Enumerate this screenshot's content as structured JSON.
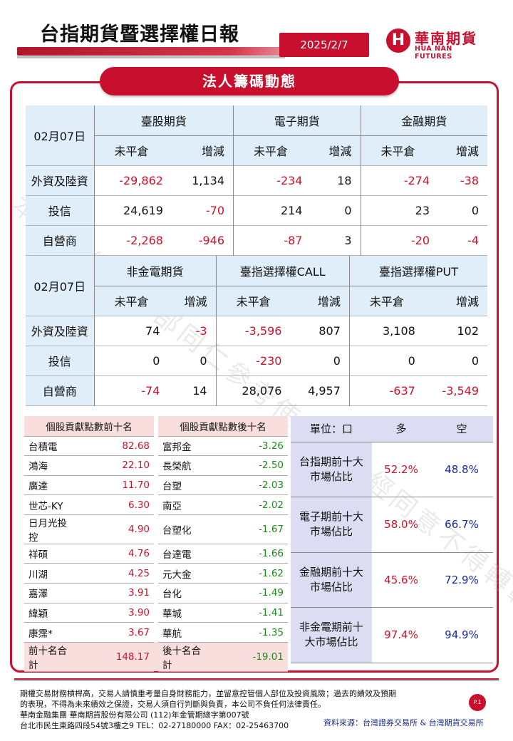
{
  "header": {
    "title": "台指期貨暨選擇權日報",
    "date": "2025/2/7",
    "brand_cn": "華南期貨",
    "brand_en": "HUA NAN FUTURES"
  },
  "section_title": "法人籌碼動態",
  "inst_table_1": {
    "date": "02月07日",
    "groups": [
      "臺股期貨",
      "電子期貨",
      "金融期貨"
    ],
    "sub_oi": "未平倉",
    "sub_chg": "增減",
    "rows": [
      {
        "label": "外資及陸資",
        "v": [
          "-29,862",
          "1,134",
          "-234",
          "18",
          "-274",
          "-38"
        ]
      },
      {
        "label": "投信",
        "v": [
          "24,619",
          "-70",
          "214",
          "0",
          "23",
          "0"
        ]
      },
      {
        "label": "自營商",
        "v": [
          "-2,268",
          "-946",
          "-87",
          "3",
          "-20",
          "-4"
        ]
      }
    ]
  },
  "inst_table_2": {
    "date": "02月07日",
    "groups": [
      "非金電期貨",
      "臺指選擇權CALL",
      "臺指選擇權PUT"
    ],
    "sub_oi": "未平倉",
    "sub_chg": "增減",
    "rows": [
      {
        "label": "外資及陸資",
        "v": [
          "74",
          "-3",
          "-3,596",
          "807",
          "3,108",
          "102"
        ]
      },
      {
        "label": "投信",
        "v": [
          "0",
          "0",
          "-230",
          "0",
          "0",
          "0"
        ]
      },
      {
        "label": "自營商",
        "v": [
          "-74",
          "14",
          "28,076",
          "4,957",
          "-637",
          "-3,549"
        ]
      }
    ]
  },
  "ranking": {
    "top_header": "個股貢獻點數前十名",
    "bottom_header": "個股貢獻點數後十名",
    "top": [
      {
        "name": "台積電",
        "value": "82.68"
      },
      {
        "name": "鴻海",
        "value": "22.10"
      },
      {
        "name": "廣達",
        "value": "11.70"
      },
      {
        "name": "世芯-KY",
        "value": "6.30"
      },
      {
        "name": "日月光投控",
        "value": "4.90"
      },
      {
        "name": "祥碩",
        "value": "4.76"
      },
      {
        "name": "川湖",
        "value": "4.25"
      },
      {
        "name": "嘉澤",
        "value": "3.91"
      },
      {
        "name": "緯穎",
        "value": "3.90"
      },
      {
        "name": "康霈*",
        "value": "3.67"
      }
    ],
    "bottom": [
      {
        "name": "富邦金",
        "value": "-3.26"
      },
      {
        "name": "長榮航",
        "value": "-2.50"
      },
      {
        "name": "台塑",
        "value": "-2.03"
      },
      {
        "name": "南亞",
        "value": "-2.02"
      },
      {
        "name": "台塑化",
        "value": "-1.67"
      },
      {
        "name": "台達電",
        "value": "-1.66"
      },
      {
        "name": "元大金",
        "value": "-1.62"
      },
      {
        "name": "台化",
        "value": "-1.49"
      },
      {
        "name": "華城",
        "value": "-1.41"
      },
      {
        "name": "華航",
        "value": "-1.35"
      }
    ],
    "top_total_label": "前十名合計",
    "top_total": "148.17",
    "bottom_total_label": "後十名合計",
    "bottom_total": "-19.01"
  },
  "share_table": {
    "unit": "單位：口",
    "long": "多",
    "short": "空",
    "rows": [
      {
        "line1": "台指期前十大",
        "line2": "市場佔比",
        "long": "52.2%",
        "short": "48.8%"
      },
      {
        "line1": "電子期前十大",
        "line2": "市場佔比",
        "long": "58.0%",
        "short": "66.7%"
      },
      {
        "line1": "金融期前十大",
        "line2": "市場佔比",
        "long": "45.6%",
        "short": "72.9%"
      },
      {
        "line1": "非金電期前十",
        "line2": "大市場佔比",
        "long": "97.4%",
        "short": "94.9%"
      }
    ]
  },
  "watermark": "本資料僅供內部同仁參考使用，未經同意不得轉載。",
  "footer": {
    "lines": [
      "期權交易財務槓桿高，交易人請慎重考量自身財務能力，並留意控管個人部位及投資風險；過去的績效及預期",
      "的表現，不得為未來績效之保證，交易人須自行判斷與負責，本公司不負任何法律責任。",
      "華南金融集團 華南期貨股份有限公司 (112)年金管期總字第007號",
      "台北市民生東路四段54號3樓之9  TEL：02-27180000  FAX：02-25463700"
    ],
    "page": "P.1",
    "source": "資料來源：台灣證券交易所 & 台灣期貨交易所"
  },
  "colors": {
    "brand_red": "#c8102e",
    "neg": "#d0102a",
    "pos_green": "#1a8a1a",
    "short_blue": "#1a2aa0"
  }
}
